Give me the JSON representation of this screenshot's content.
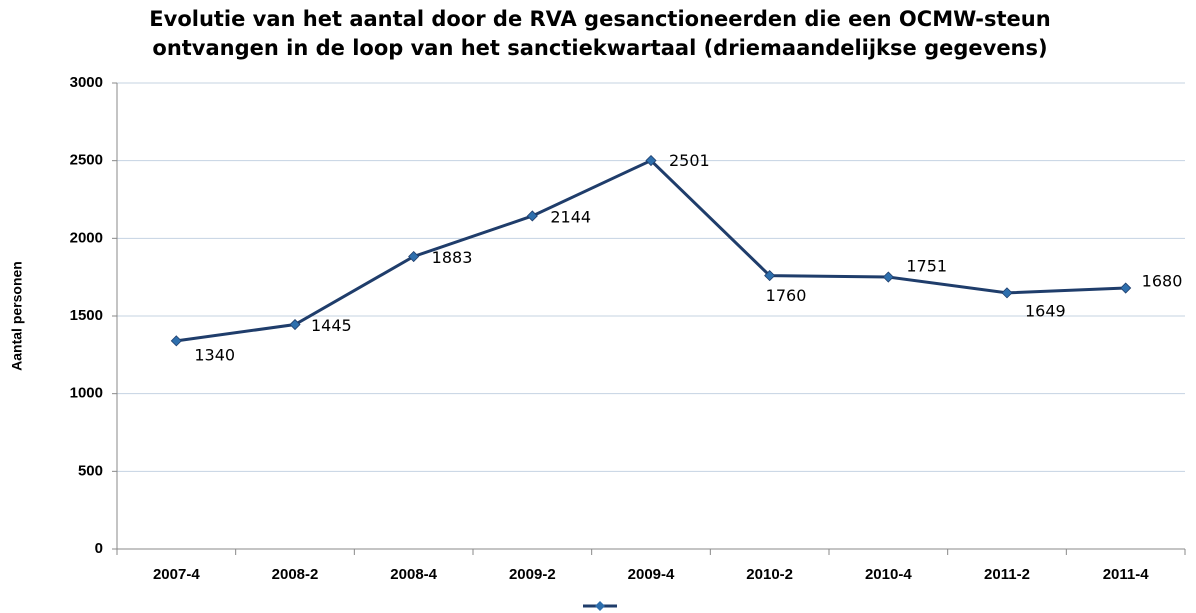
{
  "chart_data": {
    "type": "line",
    "title": [
      "Evolutie van het aantal door de RVA gesanctioneerden die een OCMW-steun",
      "ontvangen in de loop van het sanctiekwartaal (driemaandelijkse gegevens)"
    ],
    "y_axis_label": "Aantal personen",
    "categories": [
      "2007-4",
      "2008-2",
      "2008-4",
      "2009-2",
      "2009-4",
      "2010-2",
      "2010-4",
      "2011-2",
      "2011-4"
    ],
    "series": [
      {
        "color": "#1f3d6b",
        "marker_color": "#2e6fad",
        "values": [
          1340,
          1445,
          1883,
          2144,
          2501,
          1760,
          1751,
          1649,
          1680
        ]
      }
    ],
    "ylim": [
      0,
      3000
    ],
    "yticks": [
      0,
      500,
      1000,
      1500,
      2000,
      2500,
      3000
    ],
    "grid": true,
    "legend": "bottom"
  }
}
